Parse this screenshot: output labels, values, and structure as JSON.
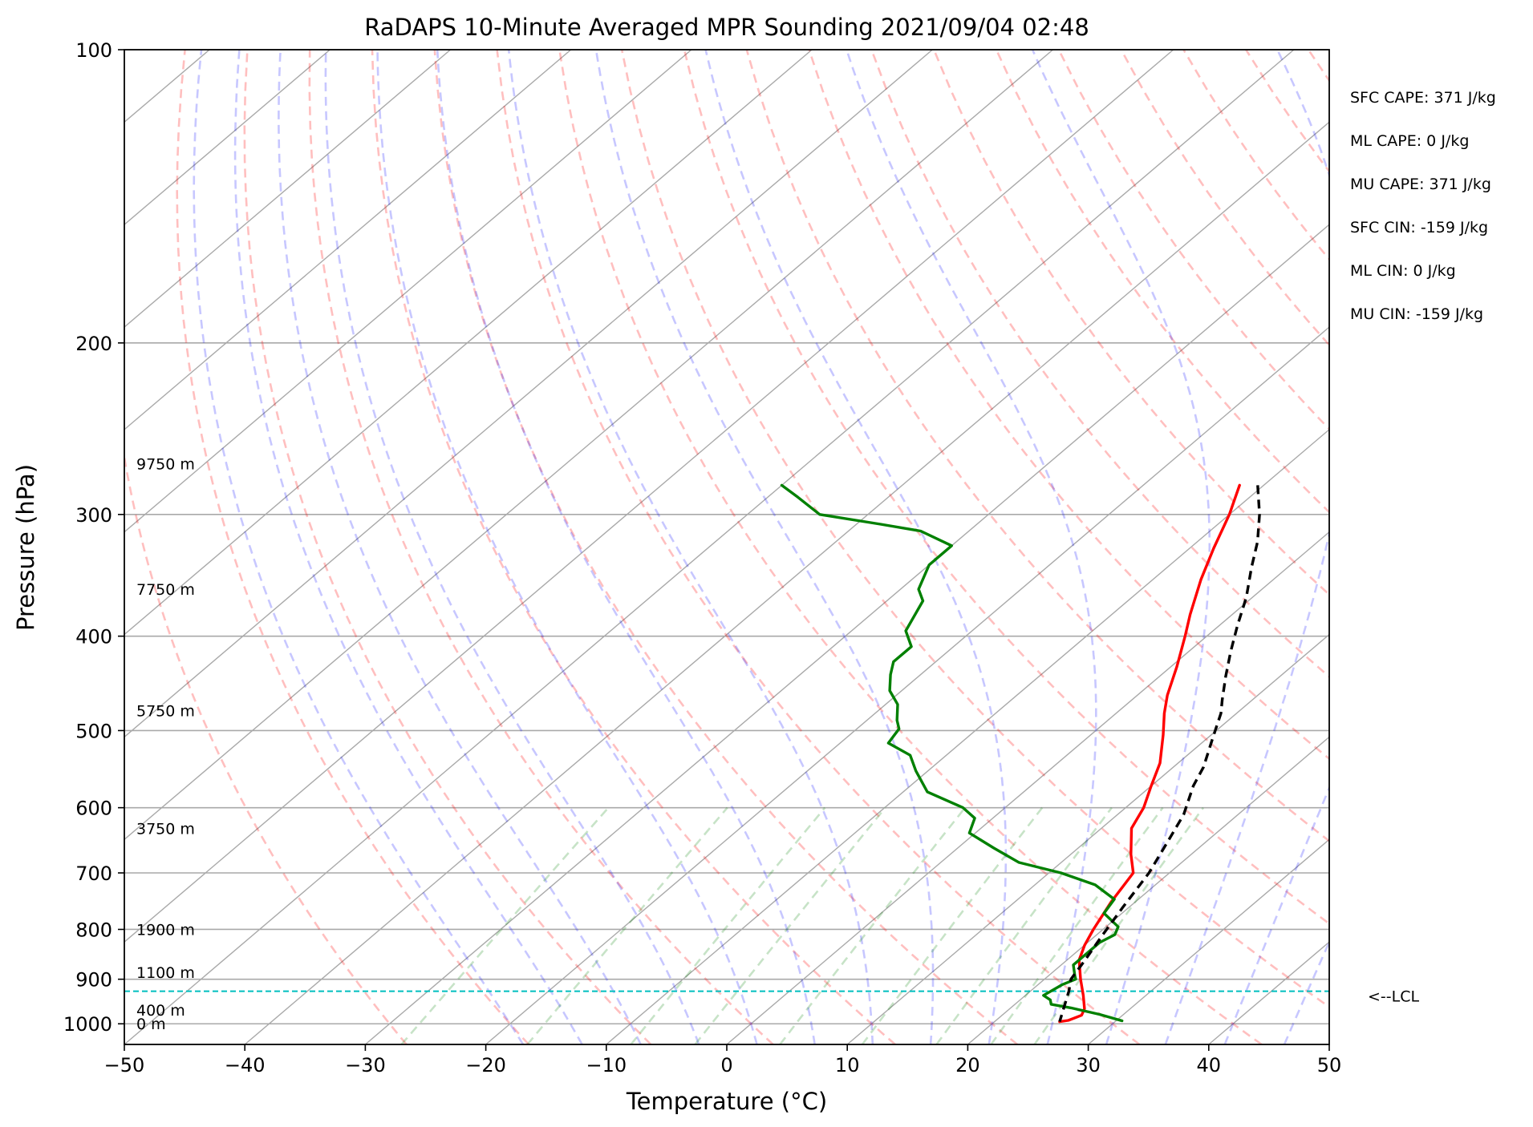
{
  "chart_data": {
    "type": "line",
    "title": "RaDAPS 10-Minute Averaged MPR Sounding 2021/09/04 02:48",
    "xlabel": "Temperature (°C)",
    "ylabel": "Pressure (hPa)",
    "xlim": [
      -50,
      50
    ],
    "ylim": [
      1050,
      100
    ],
    "y_scale": "log",
    "skew": true,
    "x_ticks": [
      -50,
      -40,
      -30,
      -20,
      -10,
      0,
      10,
      20,
      30,
      40,
      50
    ],
    "x_tick_labels": [
      "−50",
      "−40",
      "−30",
      "−20",
      "−10",
      "0",
      "10",
      "20",
      "30",
      "40",
      "50"
    ],
    "y_ticks": [
      100,
      200,
      300,
      400,
      500,
      600,
      700,
      800,
      900,
      1000
    ],
    "y_tick_labels": [
      "100",
      "200",
      "300",
      "400",
      "500",
      "600",
      "700",
      "800",
      "900",
      "1000"
    ],
    "grid": true,
    "series": [
      {
        "color": "#ff0000",
        "points": [
          [
            -12.0,
            280
          ],
          [
            -10.0,
            300
          ],
          [
            -8.0,
            325
          ],
          [
            -6.0,
            350
          ],
          [
            -3.5,
            380
          ],
          [
            -1.8,
            400
          ],
          [
            0.5,
            430
          ],
          [
            2.5,
            460
          ],
          [
            4.0,
            480
          ],
          [
            6.0,
            505
          ],
          [
            8.5,
            540
          ],
          [
            10.0,
            570
          ],
          [
            11.5,
            600
          ],
          [
            12.5,
            630
          ],
          [
            15.0,
            670
          ],
          [
            17.0,
            700
          ],
          [
            18.0,
            750
          ],
          [
            19.2,
            800
          ],
          [
            20.0,
            830
          ],
          [
            21.0,
            860
          ],
          [
            23.0,
            900
          ],
          [
            24.8,
            935
          ],
          [
            26.2,
            965
          ],
          [
            26.6,
            980
          ],
          [
            26.0,
            992
          ],
          [
            25.4,
            995
          ]
        ]
      },
      {
        "color": "#008000",
        "points": [
          [
            -50.0,
            280
          ],
          [
            -47.5,
            288
          ],
          [
            -44.0,
            300
          ],
          [
            -38.0,
            307
          ],
          [
            -34.0,
            312
          ],
          [
            -30.0,
            323
          ],
          [
            -30.0,
            338
          ],
          [
            -28.5,
            358
          ],
          [
            -27.0,
            368
          ],
          [
            -25.5,
            395
          ],
          [
            -23.5,
            410
          ],
          [
            -23.5,
            425
          ],
          [
            -22.5,
            438
          ],
          [
            -21.0,
            455
          ],
          [
            -19.0,
            470
          ],
          [
            -17.5,
            488
          ],
          [
            -16.5,
            498
          ],
          [
            -16.0,
            515
          ],
          [
            -13.0,
            530
          ],
          [
            -11.0,
            550
          ],
          [
            -8.0,
            578
          ],
          [
            -3.5,
            600
          ],
          [
            -1.5,
            615
          ],
          [
            -0.5,
            637
          ],
          [
            3.0,
            660
          ],
          [
            6.5,
            683
          ],
          [
            11.0,
            700
          ],
          [
            15.0,
            720
          ],
          [
            18.0,
            745
          ],
          [
            18.5,
            770
          ],
          [
            21.0,
            795
          ],
          [
            21.5,
            810
          ],
          [
            21.0,
            825
          ],
          [
            21.0,
            855
          ],
          [
            21.0,
            870
          ],
          [
            22.2,
            893
          ],
          [
            22.6,
            900
          ],
          [
            22.0,
            912
          ],
          [
            21.5,
            935
          ],
          [
            22.5,
            945
          ],
          [
            23.0,
            955
          ],
          [
            25.0,
            963
          ],
          [
            28.0,
            978
          ],
          [
            30.5,
            993
          ]
        ]
      },
      {
        "color": "#000000",
        "dashed": true,
        "points": [
          [
            -10.5,
            280
          ],
          [
            -7.5,
            300
          ],
          [
            -5.0,
            320
          ],
          [
            -3.0,
            340
          ],
          [
            -0.5,
            365
          ],
          [
            1.5,
            390
          ],
          [
            3.5,
            415
          ],
          [
            5.5,
            440
          ],
          [
            7.5,
            465
          ],
          [
            8.7,
            480
          ],
          [
            10.5,
            510
          ],
          [
            12.5,
            545
          ],
          [
            13.5,
            570
          ],
          [
            15.5,
            610
          ],
          [
            16.8,
            650
          ],
          [
            18.3,
            700
          ],
          [
            19.5,
            760
          ],
          [
            20.5,
            810
          ],
          [
            21.5,
            860
          ],
          [
            22.2,
            900
          ],
          [
            23.2,
            926
          ],
          [
            25.4,
            995
          ]
        ]
      }
    ],
    "height_labels": [
      {
        "text": "9750 m",
        "p": 266
      },
      {
        "text": "7750 m",
        "p": 358
      },
      {
        "text": "5750 m",
        "p": 477
      },
      {
        "text": "3750 m",
        "p": 630
      },
      {
        "text": "1900 m",
        "p": 800
      },
      {
        "text": "1100 m",
        "p": 885
      },
      {
        "text": "400 m",
        "p": 968
      },
      {
        "text": "0 m",
        "p": 1000
      }
    ],
    "lcl": {
      "p": 926,
      "label": "<--LCL",
      "color": "#00bfbf"
    },
    "indices": [
      "SFC CAPE: 371 J/kg",
      "ML CAPE: 0 J/kg",
      "MU CAPE: 371 J/kg",
      "SFC CIN: -159 J/kg",
      "ML CIN: 0 J/kg",
      "MU CIN: -159 J/kg"
    ]
  }
}
